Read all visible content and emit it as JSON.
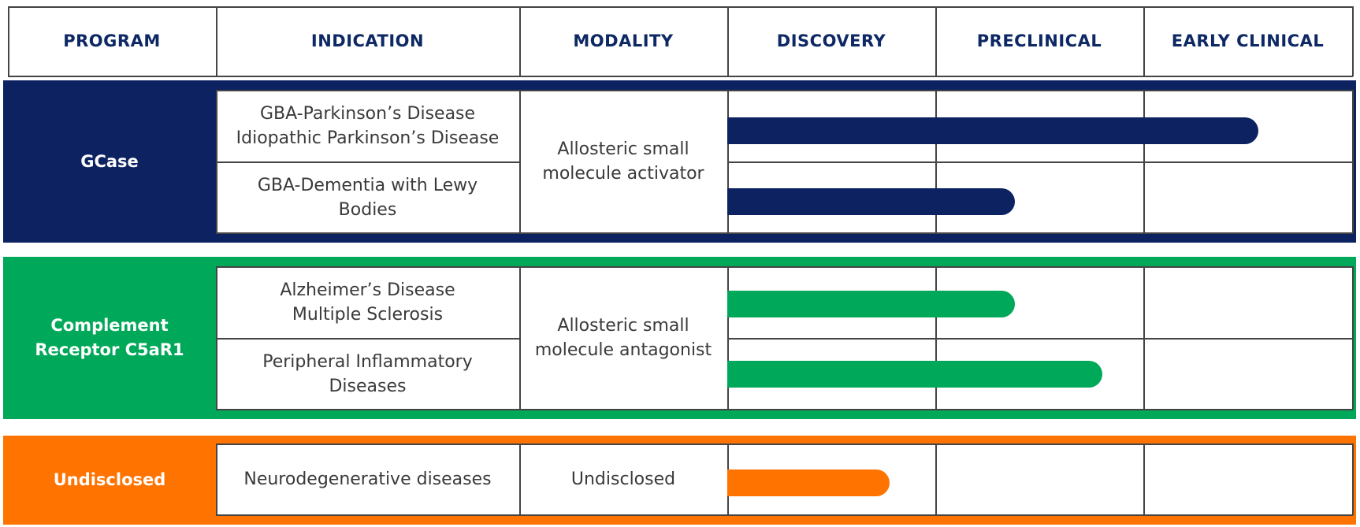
{
  "header": {
    "columns": [
      "PROGRAM",
      "INDICATION",
      "MODALITY",
      "DISCOVERY",
      "PRECLINICAL",
      "EARLY CLINICAL"
    ]
  },
  "programs": [
    {
      "name": "GCase",
      "color": "#0d2260",
      "modality": "Allosteric small\nmolecule activator",
      "rows": [
        {
          "indication": "GBA-Parkinson’s Disease\nIdiopathic Parkinson’s Disease",
          "progress": 0.85
        },
        {
          "indication": "GBA-Dementia with Lewy\nBodies",
          "progress": 0.46
        }
      ]
    },
    {
      "name": "Complement\nReceptor C5aR1",
      "color": "#00a859",
      "modality": "Allosteric small\nmolecule antagonist",
      "rows": [
        {
          "indication": "Alzheimer’s Disease\nMultiple Sclerosis",
          "progress": 0.46
        },
        {
          "indication": "Peripheral Inflammatory\nDiseases",
          "progress": 0.6
        }
      ]
    },
    {
      "name": "Undisclosed",
      "color": "#ff7300",
      "modality": "Undisclosed",
      "rows": [
        {
          "indication": "Neurodegenerative diseases",
          "progress": 0.26
        }
      ]
    }
  ]
}
